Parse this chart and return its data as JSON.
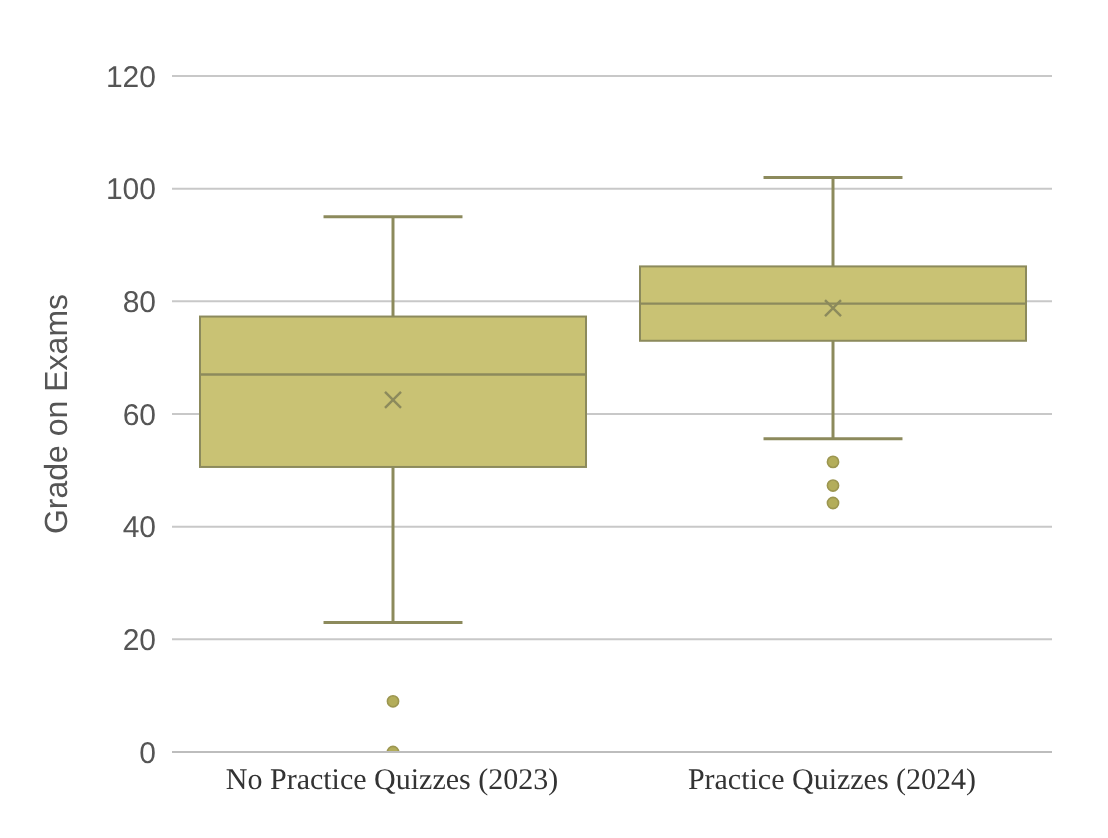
{
  "chart_data": {
    "type": "box",
    "ylabel": "Grade on Exams",
    "categories": [
      "No Practice Quizzes (2023)",
      "Practice Quizzes (2024)"
    ],
    "boxes": [
      {
        "low": 23,
        "q1": 50.6,
        "median": 67,
        "q3": 77.3,
        "high": 95,
        "mean": 62.5,
        "outliers": [
          9,
          0
        ]
      },
      {
        "low": 55.6,
        "q1": 73,
        "median": 79.6,
        "q3": 86.2,
        "high": 102,
        "mean": 78.8,
        "outliers": [
          51.5,
          47.3,
          44.2
        ]
      }
    ],
    "color": "#c9c274",
    "ylim": [
      0,
      120
    ],
    "yticks": [
      0,
      20,
      40,
      60,
      80,
      100,
      120
    ],
    "grid": "y"
  }
}
